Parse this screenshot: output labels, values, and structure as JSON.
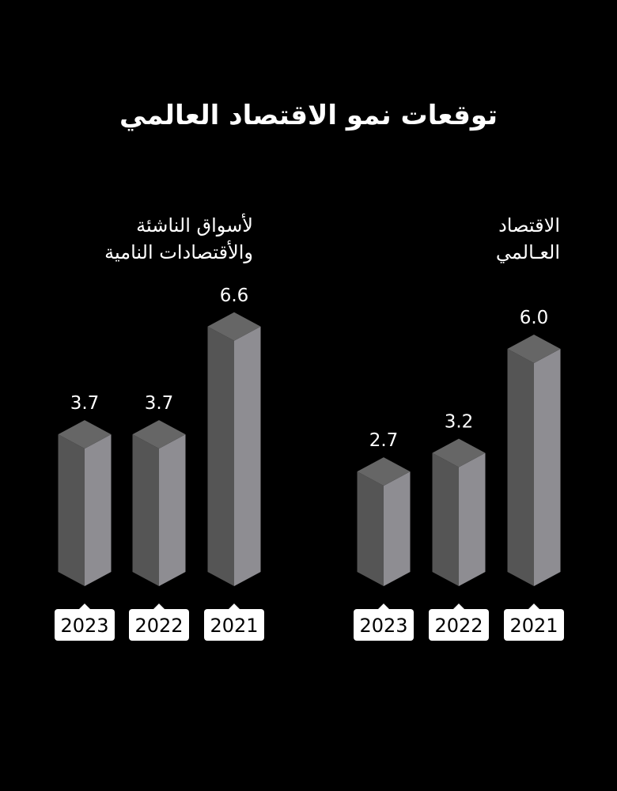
{
  "title": "توقعات نمو الاقتصاد العالمي",
  "groups": [
    {
      "label_line1": "لأسواق الناشئة",
      "label_line2": "والأقتصادات النامية"
    },
    {
      "label_line1": "الاقتصاد",
      "label_line2": "العـالمي"
    }
  ],
  "colors": {
    "background": "#000000",
    "bar_left_face": "#555555",
    "bar_right_face": "#8e8d92",
    "bar_top_face": "#666666",
    "year_box": "#ffffff"
  },
  "chart_data": {
    "type": "bar",
    "title": "توقعات نمو الاقتصاد العالمي",
    "categories": [
      "2023",
      "2022",
      "2021"
    ],
    "series": [
      {
        "name": "لأسواق الناشئة والأقتصادات النامية",
        "values": [
          3.7,
          3.7,
          6.6
        ]
      },
      {
        "name": "الاقتصاد العالمي",
        "values": [
          2.7,
          3.2,
          6.0
        ]
      }
    ],
    "xlabel": "",
    "ylabel": "",
    "grid": false,
    "style": "3d-isometric-columns",
    "legend_position": "group-labels-above"
  }
}
